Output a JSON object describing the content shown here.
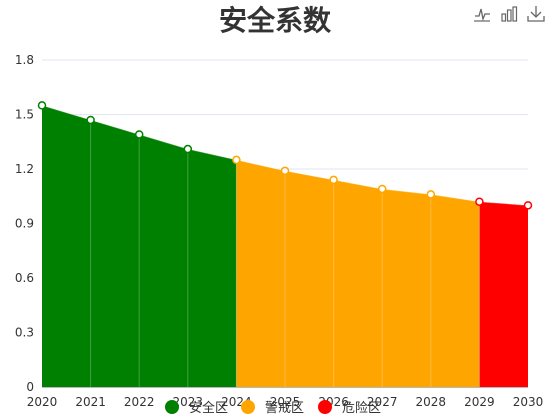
{
  "chart_data": {
    "type": "area",
    "title": "安全系数",
    "x": [
      "2020",
      "2021",
      "2022",
      "2023",
      "2024",
      "2025",
      "2026",
      "2027",
      "2028",
      "2029",
      "2030"
    ],
    "values": [
      1.55,
      1.47,
      1.39,
      1.31,
      1.25,
      1.19,
      1.14,
      1.09,
      1.06,
      1.02,
      1.0
    ],
    "ylim": [
      0,
      1.8
    ],
    "yticks": [
      "0",
      "0.3",
      "0.6",
      "0.9",
      "1.2",
      "1.5",
      "1.8"
    ],
    "grid": "horizontal",
    "legend_position": "bottom",
    "zones": [
      {
        "name": "安全区",
        "from": "2020",
        "to": "2024",
        "color": "#008000"
      },
      {
        "name": "警戒区",
        "from": "2024",
        "to": "2029",
        "color": "#FFA500"
      },
      {
        "name": "危险区",
        "from": "2029",
        "to": "2030",
        "color": "#FF0000"
      }
    ]
  },
  "toolbox": [
    {
      "icon": "line-chart-icon"
    },
    {
      "icon": "bar-chart-icon"
    },
    {
      "icon": "download-icon"
    }
  ]
}
